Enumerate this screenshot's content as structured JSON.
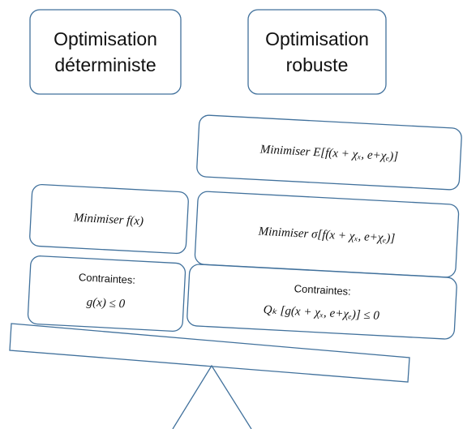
{
  "headers": [
    "Optimisation déterministe",
    "Optimisation robuste"
  ],
  "header_lines": [
    [
      "Optimisation",
      "déterministe"
    ],
    [
      "Optimisation",
      "robuste"
    ]
  ],
  "boxes": [
    {
      "label": "Minimiser E[f(x + χₓ, e+χₑ)]"
    },
    {
      "label": "Minimiser f(x)"
    },
    {
      "label": "Minimiser σ[f(x + χₓ, e+χₑ)]"
    },
    {
      "title": "Contraintes:",
      "label": "g(x) ≤ 0"
    },
    {
      "title": "Contraintes:",
      "label": "Qₖ [g(x + χₓ, e+χₑ)] ≤ 0"
    }
  ]
}
